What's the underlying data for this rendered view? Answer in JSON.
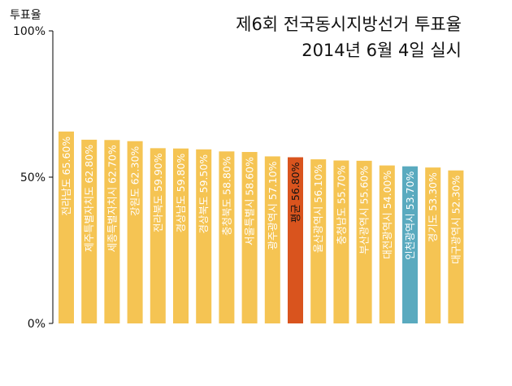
{
  "chart_data": {
    "type": "bar",
    "title_lines": [
      "제6회 전국동시지방선거 투표율",
      "2014년 6월 4일 실시"
    ],
    "ylabel": "투표율",
    "ylim": [
      0,
      100
    ],
    "yticks": [
      {
        "value": 0,
        "label": "0%"
      },
      {
        "value": 50,
        "label": "50%"
      },
      {
        "value": 100,
        "label": "100%"
      }
    ],
    "grid": false,
    "colors": {
      "default": "#f5c453",
      "average": "#d9541e",
      "highlight": "#5aaabf",
      "axis": "#000000",
      "label_light": "#ffffff",
      "label_dark": "#111111"
    },
    "bars": [
      {
        "label": "전라남도 65.60%",
        "value": 65.6,
        "kind": "default"
      },
      {
        "label": "제주특별자치도 62.80%",
        "value": 62.8,
        "kind": "default"
      },
      {
        "label": "세종특별자치시 62.70%",
        "value": 62.7,
        "kind": "default"
      },
      {
        "label": "강원도 62.30%",
        "value": 62.3,
        "kind": "default"
      },
      {
        "label": "전라북도 59.90%",
        "value": 59.9,
        "kind": "default"
      },
      {
        "label": "경상남도 59.80%",
        "value": 59.8,
        "kind": "default"
      },
      {
        "label": "경상북도 59.50%",
        "value": 59.5,
        "kind": "default"
      },
      {
        "label": "충청북도 58.80%",
        "value": 58.8,
        "kind": "default"
      },
      {
        "label": "서울특별시 58.60%",
        "value": 58.6,
        "kind": "default"
      },
      {
        "label": "광주광역시 57.10%",
        "value": 57.1,
        "kind": "default"
      },
      {
        "label": "평균 56.80%",
        "value": 56.8,
        "kind": "average"
      },
      {
        "label": "울산광역시 56.10%",
        "value": 56.1,
        "kind": "default"
      },
      {
        "label": "충청남도 55.70%",
        "value": 55.7,
        "kind": "default"
      },
      {
        "label": "부산광역시 55.60%",
        "value": 55.6,
        "kind": "default"
      },
      {
        "label": "대전광역시 54.00%",
        "value": 54.0,
        "kind": "default"
      },
      {
        "label": "인천광역시 53.70%",
        "value": 53.7,
        "kind": "highlight"
      },
      {
        "label": "경기도 53.30%",
        "value": 53.3,
        "kind": "default"
      },
      {
        "label": "대구광역시 52.30%",
        "value": 52.3,
        "kind": "default"
      }
    ]
  }
}
